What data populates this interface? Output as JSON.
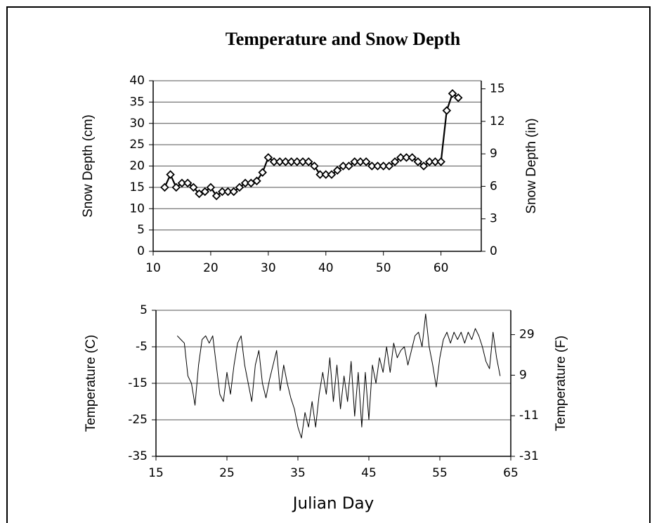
{
  "title": "Temperature and Snow Depth",
  "chart_data": [
    {
      "type": "line",
      "marker": "diamond",
      "color": "#000000",
      "grid": true,
      "ylabel": "Snow Depth (cm)",
      "y2label": "Snow Depth (in)",
      "x": [
        12,
        13,
        14,
        15,
        16,
        17,
        18,
        19,
        20,
        21,
        22,
        23,
        24,
        25,
        26,
        27,
        28,
        29,
        30,
        31,
        32,
        33,
        34,
        35,
        36,
        37,
        38,
        39,
        40,
        41,
        42,
        43,
        44,
        45,
        46,
        47,
        48,
        49,
        50,
        51,
        52,
        53,
        54,
        55,
        56,
        57,
        58,
        59,
        60,
        61,
        62,
        63
      ],
      "values": [
        15,
        18,
        15,
        16,
        16,
        15,
        13.5,
        14,
        15,
        13,
        14,
        14,
        14,
        15,
        16,
        16,
        16.5,
        18.5,
        22,
        21,
        21,
        21,
        21,
        21,
        21,
        21,
        20,
        18,
        18,
        18,
        19,
        20,
        20,
        21,
        21,
        21,
        20,
        20,
        20,
        20,
        21,
        22,
        22,
        22,
        21,
        20,
        21,
        21,
        21,
        33,
        37,
        36
      ],
      "xlim": [
        10,
        67
      ],
      "xticks": [
        10,
        20,
        30,
        40,
        50,
        60
      ],
      "ylim": [
        0,
        40
      ],
      "yticks": [
        0,
        5,
        10,
        15,
        20,
        25,
        30,
        35,
        40
      ],
      "y2lim": [
        0,
        15.75
      ],
      "y2ticks": [
        0,
        3,
        6,
        9,
        12,
        15
      ]
    },
    {
      "type": "line",
      "color": "#000000",
      "grid": true,
      "xlabel": "Julian Day",
      "ylabel": "Temperature (C)",
      "y2label": "Temperature (F)",
      "x": [
        18,
        18.5,
        19,
        19.5,
        20,
        20.5,
        21,
        21.5,
        22,
        22.5,
        23,
        23.5,
        24,
        24.5,
        25,
        25.5,
        26,
        26.5,
        27,
        27.5,
        28,
        28.5,
        29,
        29.5,
        30,
        30.5,
        31,
        31.5,
        32,
        32.5,
        33,
        33.5,
        34,
        34.5,
        35,
        35.5,
        36,
        36.5,
        37,
        37.5,
        38,
        38.5,
        39,
        39.5,
        40,
        40.5,
        41,
        41.5,
        42,
        42.5,
        43,
        43.5,
        44,
        44.5,
        45,
        45.5,
        46,
        46.5,
        47,
        47.5,
        48,
        48.5,
        49,
        49.5,
        50,
        50.5,
        51,
        51.5,
        52,
        52.5,
        53,
        53.5,
        54,
        54.5,
        55,
        55.5,
        56,
        56.5,
        57,
        57.5,
        58,
        58.5,
        59,
        59.5,
        60,
        60.5,
        61,
        61.5,
        62,
        62.5,
        63,
        63.5
      ],
      "values": [
        -2,
        -3,
        -4,
        -13,
        -15,
        -21,
        -10,
        -3,
        -2,
        -4,
        -2,
        -10,
        -18,
        -20,
        -12,
        -18,
        -10,
        -4,
        -2,
        -10,
        -15,
        -20,
        -10,
        -6,
        -15,
        -19,
        -14,
        -10,
        -6,
        -17,
        -10,
        -15,
        -19,
        -22,
        -27,
        -30,
        -23,
        -27,
        -20,
        -27,
        -18,
        -12,
        -18,
        -8,
        -20,
        -10,
        -22,
        -13,
        -20,
        -9,
        -24,
        -12,
        -27,
        -12,
        -25,
        -10,
        -15,
        -8,
        -12,
        -5,
        -12,
        -4,
        -8,
        -6,
        -5,
        -10,
        -6,
        -2,
        -1,
        -5,
        4,
        -5,
        -10,
        -16,
        -8,
        -3,
        -1,
        -4,
        -1,
        -3,
        -1,
        -4,
        -1,
        -3,
        0,
        -2,
        -5,
        -9,
        -11,
        -1,
        -8,
        -13
      ],
      "xlim": [
        15,
        65
      ],
      "xticks": [
        15,
        25,
        35,
        45,
        55,
        65
      ],
      "ylim": [
        -35,
        5
      ],
      "yticks": [
        -35,
        -25,
        -15,
        -5,
        5
      ],
      "y2lim": [
        -31,
        41
      ],
      "y2ticks": [
        -31,
        -11,
        9,
        29
      ]
    }
  ]
}
